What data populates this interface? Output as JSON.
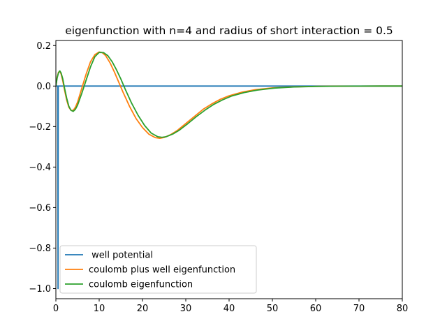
{
  "chart_data": {
    "type": "line",
    "title": "eigenfunction with n=4 and radius of short interaction = 0.5",
    "xlabel": "",
    "ylabel": "",
    "xlim": [
      0,
      80
    ],
    "ylim": [
      -1.05,
      0.225
    ],
    "xticks": [
      0,
      10,
      20,
      30,
      40,
      50,
      60,
      70,
      80
    ],
    "yticks": [
      -1.0,
      -0.8,
      -0.6,
      -0.4,
      -0.2,
      0.0,
      0.2
    ],
    "xtick_labels": [
      "0",
      "10",
      "20",
      "30",
      "40",
      "50",
      "60",
      "70",
      "80"
    ],
    "ytick_labels": [
      "−1.0",
      "−0.8",
      "−0.6",
      "−0.4",
      "−0.2",
      "0.0",
      "0.2"
    ],
    "grid": false,
    "legend_position": "lower-left",
    "series": [
      {
        "name": " well potential",
        "color": "#1f77b4",
        "x": [
          0.0,
          0.05,
          0.15,
          0.3,
          0.45,
          0.5,
          0.55,
          0.7,
          1.0,
          5,
          10,
          20,
          30,
          40,
          50,
          60,
          70,
          80
        ],
        "y": [
          0.0,
          0.0,
          0.0,
          0.0,
          0.0,
          -1.0,
          0.0,
          0.0,
          0.0,
          0.0,
          0.0,
          0.0,
          0.0,
          0.0,
          0.0,
          0.0,
          0.0,
          0.0
        ]
      },
      {
        "name": "coulomb plus well eigenfunction",
        "color": "#ff7f0e",
        "x": [
          0,
          0.3,
          0.6,
          0.9,
          1.2,
          1.6,
          2.0,
          2.5,
          3.0,
          3.5,
          4.0,
          4.5,
          5.0,
          6.0,
          7.0,
          8.0,
          9.0,
          10.0,
          10.7,
          11.5,
          12.5,
          13.5,
          14.5,
          15.5,
          17.0,
          18.5,
          20.0,
          21.5,
          23.0,
          24.0,
          25.0,
          26.5,
          28.0,
          30.0,
          32.0,
          34.0,
          36.0,
          38.0,
          40.0,
          43.0,
          46.0,
          50.0,
          55.0,
          60.0,
          65.0,
          70.0,
          75.0,
          80.0
        ],
        "y": [
          0.0,
          0.045,
          0.068,
          0.073,
          0.06,
          0.025,
          -0.02,
          -0.07,
          -0.105,
          -0.12,
          -0.12,
          -0.105,
          -0.08,
          -0.01,
          0.06,
          0.12,
          0.155,
          0.168,
          0.165,
          0.15,
          0.115,
          0.07,
          0.02,
          -0.03,
          -0.1,
          -0.16,
          -0.205,
          -0.238,
          -0.255,
          -0.258,
          -0.254,
          -0.24,
          -0.22,
          -0.185,
          -0.15,
          -0.115,
          -0.088,
          -0.065,
          -0.048,
          -0.03,
          -0.018,
          -0.009,
          -0.004,
          -0.0015,
          -0.0005,
          -0.0002,
          0.0,
          0.0
        ]
      },
      {
        "name": "coulomb eigenfunction",
        "color": "#2ca02c",
        "x": [
          0,
          0.3,
          0.6,
          0.9,
          1.2,
          1.6,
          2.0,
          2.5,
          3.0,
          3.5,
          4.0,
          4.5,
          5.0,
          6.0,
          7.0,
          8.0,
          9.0,
          10.0,
          11.0,
          12.0,
          13.0,
          14.0,
          15.0,
          16.0,
          17.5,
          19.0,
          20.5,
          22.0,
          23.5,
          24.5,
          25.5,
          27.0,
          28.5,
          30.5,
          32.5,
          34.5,
          36.5,
          38.5,
          40.5,
          43.5,
          46.5,
          50.5,
          55.0,
          60.0,
          65.0,
          70.0,
          75.0,
          80.0
        ],
        "y": [
          0.0,
          0.04,
          0.065,
          0.075,
          0.065,
          0.035,
          -0.01,
          -0.06,
          -0.1,
          -0.12,
          -0.125,
          -0.115,
          -0.095,
          -0.035,
          0.03,
          0.095,
          0.145,
          0.166,
          0.165,
          0.15,
          0.12,
          0.08,
          0.035,
          -0.015,
          -0.085,
          -0.145,
          -0.195,
          -0.232,
          -0.25,
          -0.253,
          -0.25,
          -0.237,
          -0.218,
          -0.185,
          -0.15,
          -0.118,
          -0.09,
          -0.068,
          -0.05,
          -0.032,
          -0.02,
          -0.01,
          -0.0045,
          -0.0017,
          -0.0006,
          -0.0002,
          0.0,
          0.0
        ]
      }
    ]
  }
}
